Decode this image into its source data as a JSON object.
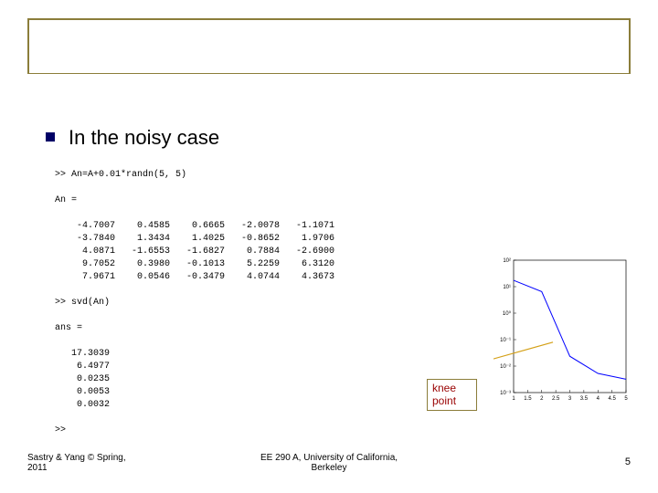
{
  "heading": "In the noisy case",
  "matlab": {
    "cmd1": ">> An=A+0.01*randn(5, 5)",
    "label1": "An =",
    "matrix": [
      [
        "-4.7007",
        " 0.4585",
        " 0.6665",
        "-2.0078",
        "-1.1071"
      ],
      [
        "-3.7840",
        " 1.3434",
        " 1.4025",
        "-0.8652",
        " 1.9706"
      ],
      [
        " 4.0871",
        "-1.6553",
        "-1.6827",
        " 0.7884",
        "-2.6900"
      ],
      [
        " 9.7052",
        " 0.3980",
        "-0.1013",
        " 5.2259",
        " 6.3120"
      ],
      [
        " 7.9671",
        " 0.0546",
        "-0.3479",
        " 4.0744",
        " 4.3673"
      ]
    ],
    "cmd2": ">> svd(An)",
    "label2": "ans =",
    "values": [
      "17.3039",
      " 6.4977",
      " 0.0235",
      " 0.0053",
      " 0.0032"
    ],
    "prompt": ">>"
  },
  "knee_label": "knee point",
  "chart": {
    "type": "line",
    "x": [
      1,
      2,
      3,
      4,
      5
    ],
    "y": [
      17.3039,
      6.4977,
      0.0235,
      0.0053,
      0.0032
    ],
    "yscale": "log",
    "ylim_exp": [
      -3,
      2
    ],
    "xlim": [
      1,
      5
    ],
    "xticks": [
      1,
      1.5,
      2,
      2.5,
      3,
      3.5,
      4,
      4.5,
      5
    ],
    "line_color": "#0000ff",
    "line_width": 1,
    "axis_color": "#000000",
    "grid_color": "#cccccc",
    "background": "#ffffff",
    "fontsize": 6,
    "arrow_color": "#d4a017"
  },
  "footer": {
    "left_line1": "Sastry & Yang © Spring,",
    "left_line2": "2011",
    "center_line1": "EE 290 A, University of California,",
    "center_line2": "Berkeley",
    "page": "5"
  }
}
